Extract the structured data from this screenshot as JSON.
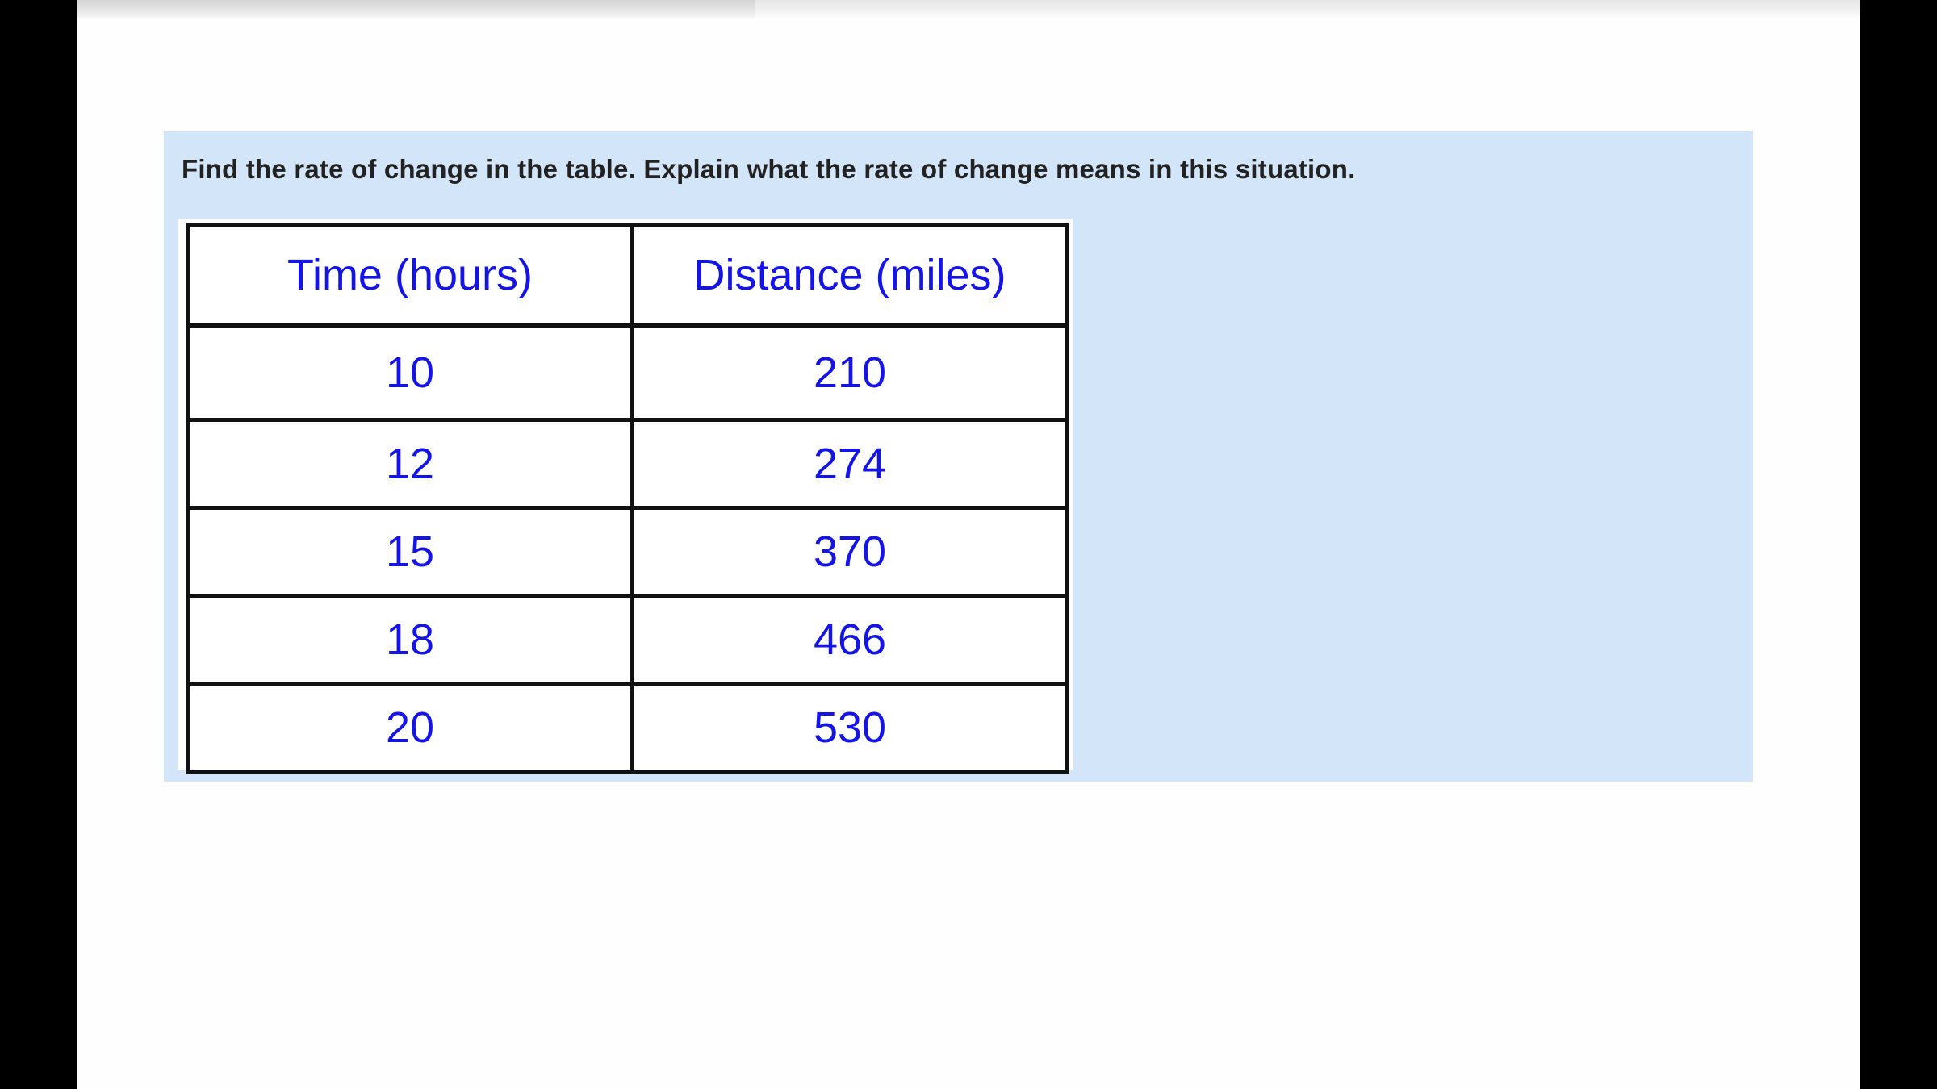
{
  "prompt": "Find the rate of change in the table. Explain what the rate of change means in this situation.",
  "table": {
    "headers": [
      "Time (hours)",
      "Distance (miles)"
    ],
    "rows": [
      [
        "10",
        "210"
      ],
      [
        "12",
        "274"
      ],
      [
        "15",
        "370"
      ],
      [
        "18",
        "466"
      ],
      [
        "20",
        "530"
      ]
    ]
  },
  "colors": {
    "panel": "#d3e5f8",
    "table_text": "#1414e6"
  }
}
